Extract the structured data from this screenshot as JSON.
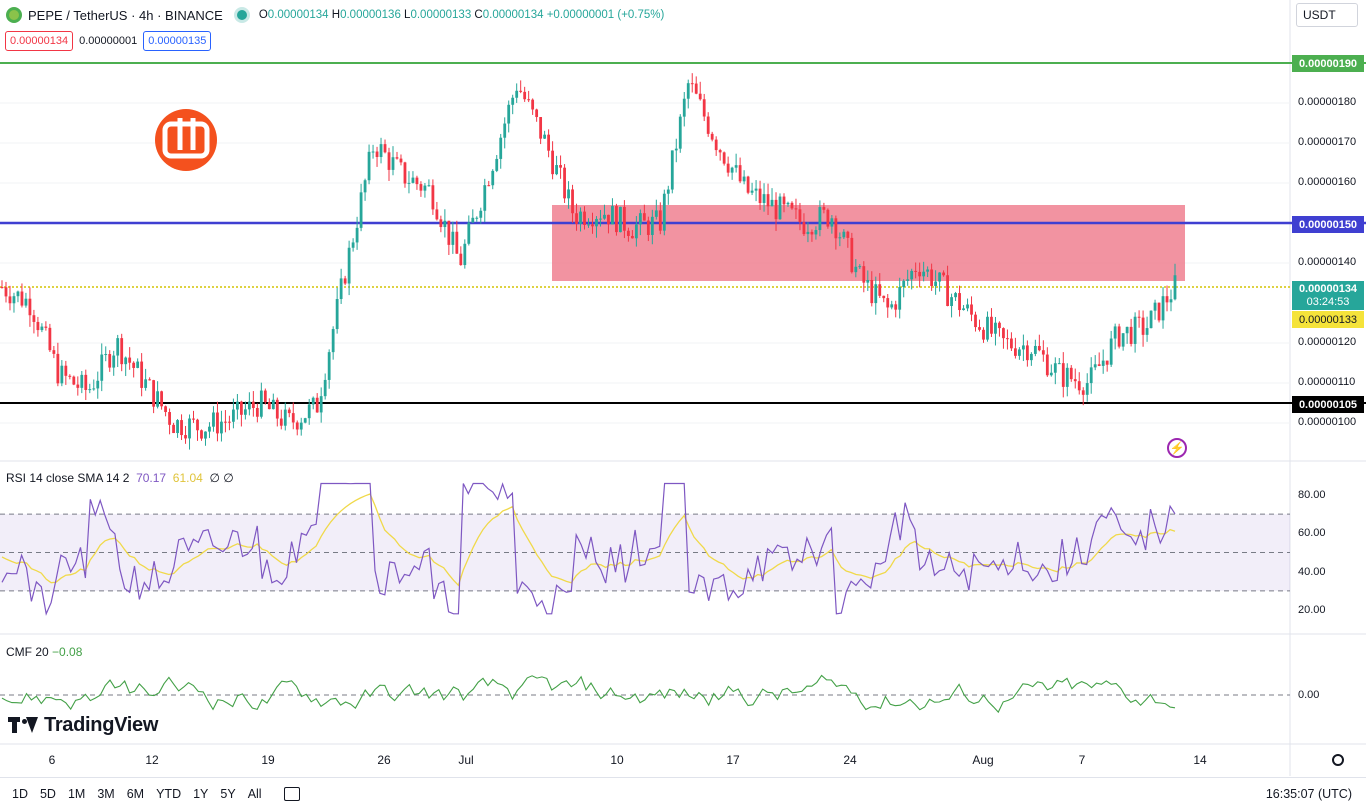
{
  "header": {
    "symbol": "PEPE / TetherUS · 4h · BINANCE",
    "o_key": "O",
    "o_val": "0.00000134",
    "h_key": "H",
    "h_val": "0.00000136",
    "l_key": "L",
    "l_val": "0.00000133",
    "c_key": "C",
    "c_val": "0.00000134",
    "change": "+0.00000001 (+0.75%)",
    "currency": "USDT"
  },
  "quote": {
    "bid": "0.00000134",
    "spread": "0.00000001",
    "ask": "0.00000135"
  },
  "price_axis": [
    "0.00000180",
    "0.00000170",
    "0.00000160",
    "0.00000140",
    "0.00000120",
    "0.00000110",
    "0.00000100"
  ],
  "tags": {
    "resist": "0.00000190",
    "mid": "0.00000150",
    "last": "0.00000134",
    "countdown": "03:24:53",
    "prev": "0.00000133",
    "support": "0.00000105"
  },
  "rsi": {
    "title": "RSI 14 close SMA 14 2",
    "rsi_val": "70.17",
    "sma_val": "61.04",
    "x1": "∅",
    "x2": "∅",
    "axis": [
      "80.00",
      "60.00",
      "40.00",
      "20.00"
    ]
  },
  "cmf": {
    "title": "CMF 20",
    "val": "−0.08",
    "axis": "0.00"
  },
  "dates": [
    "6",
    "12",
    "19",
    "26",
    "Jul",
    "10",
    "17",
    "24",
    "Aug",
    "7",
    "14"
  ],
  "periods": [
    "1D",
    "5D",
    "1M",
    "3M",
    "6M",
    "YTD",
    "1Y",
    "5Y",
    "All"
  ],
  "clock": "16:35:07 (UTC)",
  "brand": "TradingView",
  "colors": {
    "up": "#26a69a",
    "down": "#f23645",
    "resist": "#4caf50",
    "mid": "#3f3fd1",
    "zone": "#f08090",
    "rsi": "#7e57c2",
    "sma": "#f0d94a",
    "cmf": "#43a047"
  },
  "chart_data": {
    "type": "candlestick",
    "title": "PEPE / TetherUS · 4h · BINANCE",
    "x": [
      "6",
      "12",
      "19",
      "26",
      "Jul",
      "10",
      "17",
      "24",
      "Aug",
      "7",
      "14"
    ],
    "close_path": [
      1.34,
      1.3,
      1.12,
      1.08,
      1.2,
      1.1,
      1.0,
      0.99,
      1.01,
      1.05,
      1.0,
      1.04,
      1.38,
      1.7,
      1.62,
      1.58,
      1.4,
      1.62,
      1.85,
      1.7,
      1.52,
      1.53,
      1.49,
      1.5,
      1.85,
      1.7,
      1.58,
      1.54,
      1.5,
      1.52,
      1.36,
      1.28,
      1.4,
      1.33,
      1.26,
      1.2,
      1.19,
      1.12,
      1.1,
      1.22,
      1.24,
      1.34
    ],
    "levels": {
      "resistance": 1.9,
      "mid": 1.5,
      "current": 1.34,
      "support": 1.05
    },
    "zone": [
      1.355,
      1.545
    ],
    "ylim": [
      0.96,
      1.91
    ],
    "units": "1e-6 USDT"
  }
}
